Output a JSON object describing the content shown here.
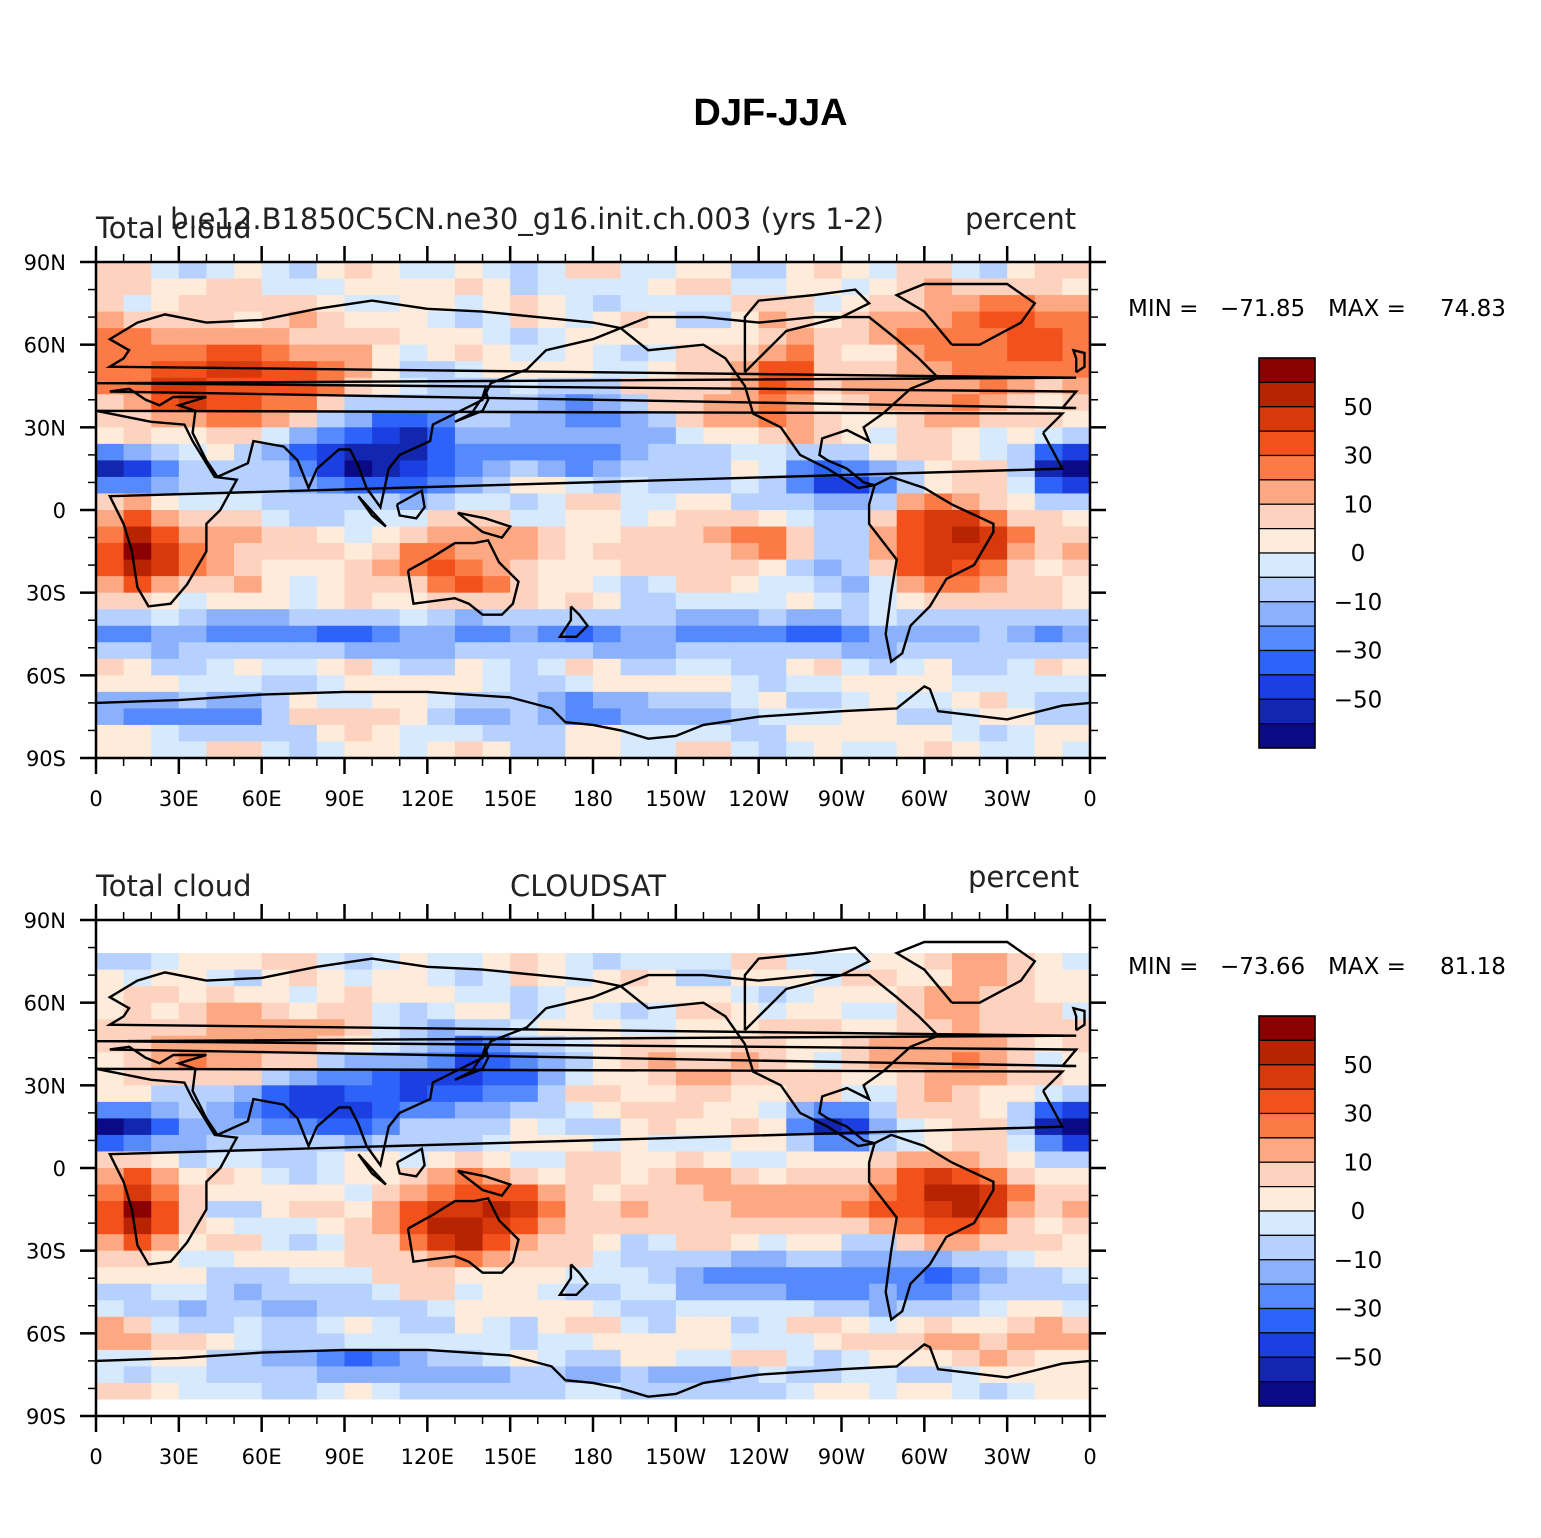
{
  "title": "DJF-JJA",
  "panels": [
    {
      "left_label": "Total cloud",
      "center_label": "b.e12.B1850C5CN.ne30_g16.init.ch.003 (yrs 1-2)",
      "right_label": "percent",
      "min_label": "MIN =",
      "min_value": "−71.85",
      "max_label": "MAX =",
      "max_value": "74.83"
    },
    {
      "left_label": "Total cloud",
      "center_label": "CLOUDSAT",
      "right_label": "percent",
      "min_label": "MIN =",
      "min_value": "−73.66",
      "max_label": "MAX =",
      "max_value": "81.18"
    }
  ],
  "lon_ticks": [
    "0",
    "30E",
    "60E",
    "90E",
    "120E",
    "150E",
    "180",
    "150W",
    "120W",
    "90W",
    "60W",
    "30W",
    "0"
  ],
  "lat_ticks": [
    "90N",
    "60N",
    "30N",
    "0",
    "30S",
    "60S",
    "90S"
  ],
  "colorbar": {
    "colors": [
      "#8b0000",
      "#b82302",
      "#d8390c",
      "#f2511c",
      "#fc7a46",
      "#fca882",
      "#fdd3bf",
      "#feebd9",
      "#d6e9fd",
      "#b6d1fd",
      "#8cb1fc",
      "#5689fb",
      "#2d63f8",
      "#1b3fe0",
      "#1226b0",
      "#0a0a86"
    ],
    "labels": [
      "50",
      "30",
      "10",
      "0",
      "−10",
      "−30",
      "−50"
    ]
  }
}
